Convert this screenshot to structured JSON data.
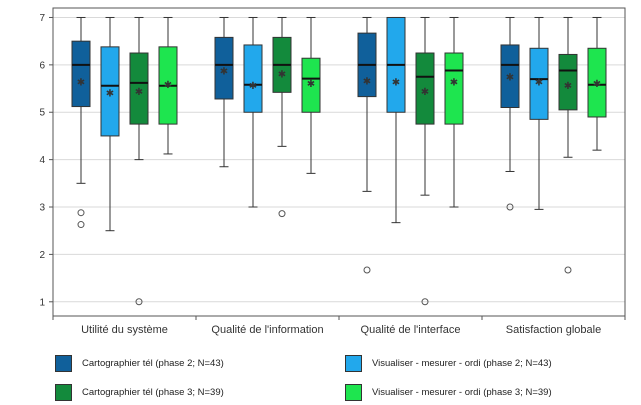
{
  "chart_data": {
    "type": "boxplot",
    "categories": [
      "Utilité du système",
      "Qualité de l'information",
      "Qualité de l'interface",
      "Satisfaction globale"
    ],
    "ylim": [
      0.7,
      7.2
    ],
    "yticks": [
      1,
      2,
      3,
      4,
      5,
      6,
      7
    ],
    "grid": "horizontal",
    "legend_position": "bottom",
    "series": [
      {
        "name": "Cartographier tél (phase 2; N=43)",
        "color": "#10609b",
        "boxes": [
          {
            "whisker_low": 3.5,
            "q1": 5.12,
            "median": 6.0,
            "q3": 6.5,
            "whisker_high": 7.0,
            "mean": 5.65,
            "outliers": [
              2.88,
              2.63
            ]
          },
          {
            "whisker_low": 3.85,
            "q1": 5.28,
            "median": 6.0,
            "q3": 6.58,
            "whisker_high": 7.0,
            "mean": 5.88,
            "outliers": []
          },
          {
            "whisker_low": 3.33,
            "q1": 5.33,
            "median": 6.0,
            "q3": 6.67,
            "whisker_high": 7.0,
            "mean": 5.67,
            "outliers": [
              1.67
            ]
          },
          {
            "whisker_low": 3.75,
            "q1": 5.1,
            "median": 6.0,
            "q3": 6.42,
            "whisker_high": 7.0,
            "mean": 5.75,
            "outliers": [
              3.0
            ]
          }
        ]
      },
      {
        "name": "Visualiser - mesurer - ordi (phase 2; N=43)",
        "color": "#22a8ec",
        "boxes": [
          {
            "whisker_low": 2.5,
            "q1": 4.5,
            "median": 5.56,
            "q3": 6.38,
            "whisker_high": 7.0,
            "mean": 5.42,
            "outliers": []
          },
          {
            "whisker_low": 3.0,
            "q1": 5.0,
            "median": 5.58,
            "q3": 6.42,
            "whisker_high": 7.0,
            "mean": 5.58,
            "outliers": []
          },
          {
            "whisker_low": 2.67,
            "q1": 5.0,
            "median": 6.0,
            "q3": 7.0,
            "whisker_high": 7.0,
            "mean": 5.65,
            "outliers": []
          },
          {
            "whisker_low": 2.95,
            "q1": 4.85,
            "median": 5.7,
            "q3": 6.35,
            "whisker_high": 7.0,
            "mean": 5.65,
            "outliers": []
          }
        ]
      },
      {
        "name": "Cartographier tél (phase 3; N=39)",
        "color": "#138a3c",
        "boxes": [
          {
            "whisker_low": 4.0,
            "q1": 4.75,
            "median": 5.62,
            "q3": 6.25,
            "whisker_high": 7.0,
            "mean": 5.45,
            "outliers": [
              1.0
            ]
          },
          {
            "whisker_low": 4.28,
            "q1": 5.42,
            "median": 6.0,
            "q3": 6.58,
            "whisker_high": 7.0,
            "mean": 5.82,
            "outliers": [
              2.86
            ]
          },
          {
            "whisker_low": 3.25,
            "q1": 4.75,
            "median": 5.75,
            "q3": 6.25,
            "whisker_high": 7.0,
            "mean": 5.45,
            "outliers": [
              1.0
            ]
          },
          {
            "whisker_low": 4.05,
            "q1": 5.05,
            "median": 5.88,
            "q3": 6.22,
            "whisker_high": 7.0,
            "mean": 5.58,
            "outliers": [
              1.67
            ]
          }
        ]
      },
      {
        "name": "Visualiser - mesurer - ordi (phase 3; N=39)",
        "color": "#1ee54f",
        "boxes": [
          {
            "whisker_low": 4.12,
            "q1": 4.75,
            "median": 5.56,
            "q3": 6.38,
            "whisker_high": 7.0,
            "mean": 5.6,
            "outliers": []
          },
          {
            "whisker_low": 3.71,
            "q1": 5.0,
            "median": 5.71,
            "q3": 6.14,
            "whisker_high": 7.0,
            "mean": 5.62,
            "outliers": []
          },
          {
            "whisker_low": 3.0,
            "q1": 4.75,
            "median": 5.88,
            "q3": 6.25,
            "whisker_high": 7.0,
            "mean": 5.65,
            "outliers": []
          },
          {
            "whisker_low": 4.2,
            "q1": 4.9,
            "median": 5.58,
            "q3": 6.35,
            "whisker_high": 7.0,
            "mean": 5.62,
            "outliers": []
          }
        ]
      }
    ]
  }
}
